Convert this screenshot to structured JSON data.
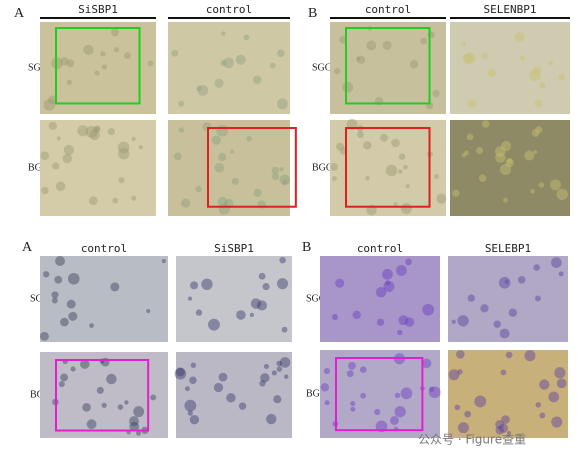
{
  "figure_top": {
    "panel_a": {
      "label": "A",
      "columns": [
        "SiSBP1",
        "control"
      ],
      "rows": [
        "SGC",
        "BGC"
      ]
    },
    "panel_b": {
      "label": "B",
      "columns": [
        "control",
        "SELENBP1"
      ],
      "rows": [
        "SGC",
        "BGC"
      ]
    }
  },
  "figure_bottom": {
    "panel_a": {
      "label": "A",
      "columns": [
        "control",
        "SiSBP1"
      ],
      "rows": [
        "SGC",
        "BGC"
      ]
    },
    "panel_b": {
      "label": "B",
      "columns": [
        "control",
        "SELEBP1"
      ],
      "rows": [
        "SGC",
        "BGC"
      ]
    }
  },
  "watermark": "公众号 · Figure查重"
}
